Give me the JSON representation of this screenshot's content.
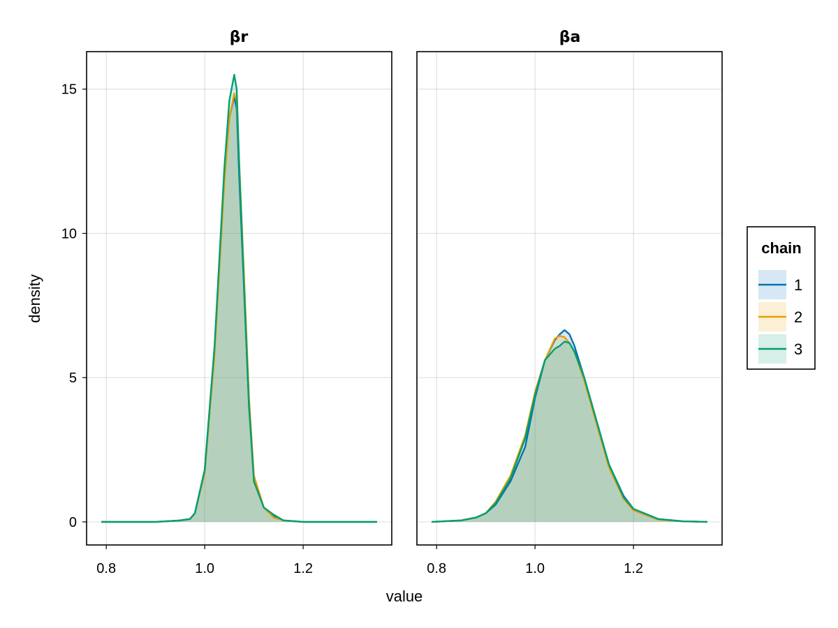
{
  "figure": {
    "xlabel": "value",
    "ylabel": "density"
  },
  "legend": {
    "title": "chain",
    "position": "right",
    "entries": [
      {
        "label": "1",
        "color": "#0072b2",
        "fill": "#0072b2"
      },
      {
        "label": "2",
        "color": "#e69f00",
        "fill": "#e69f00"
      },
      {
        "label": "3",
        "color": "#009e73",
        "fill": "#009e73"
      }
    ]
  },
  "chart_data": [
    {
      "type": "area",
      "title": "βr",
      "xlim": [
        0.76,
        1.38
      ],
      "ylim": [
        -0.8,
        16.3
      ],
      "xticks": [
        0.8,
        1.0,
        1.2
      ],
      "xtick_labels": [
        "0.8",
        "1.0",
        "1.2"
      ],
      "yticks": [
        0,
        5,
        10,
        15
      ],
      "ytick_labels": [
        "0",
        "5",
        "10",
        "15"
      ],
      "grid": true,
      "series": [
        {
          "name": "1",
          "x": [
            0.79,
            0.9,
            0.95,
            0.97,
            0.98,
            1.0,
            1.02,
            1.04,
            1.05,
            1.06,
            1.065,
            1.07,
            1.08,
            1.09,
            1.1,
            1.12,
            1.14,
            1.16,
            1.2,
            1.35
          ],
          "y": [
            0,
            0,
            0.05,
            0.1,
            0.3,
            1.8,
            6.0,
            12.0,
            14.0,
            14.75,
            14.3,
            12.0,
            8.0,
            4.0,
            1.5,
            0.5,
            0.2,
            0.05,
            0,
            0
          ]
        },
        {
          "name": "2",
          "x": [
            0.79,
            0.9,
            0.95,
            0.97,
            0.98,
            1.0,
            1.02,
            1.04,
            1.05,
            1.06,
            1.065,
            1.07,
            1.08,
            1.09,
            1.1,
            1.12,
            1.14,
            1.16,
            1.2,
            1.35
          ],
          "y": [
            0,
            0,
            0.05,
            0.1,
            0.3,
            1.7,
            5.8,
            11.8,
            14.0,
            14.85,
            14.6,
            12.5,
            8.5,
            4.3,
            1.6,
            0.5,
            0.15,
            0.05,
            0,
            0
          ]
        },
        {
          "name": "3",
          "x": [
            0.79,
            0.9,
            0.95,
            0.97,
            0.98,
            1.0,
            1.02,
            1.04,
            1.05,
            1.06,
            1.065,
            1.07,
            1.08,
            1.09,
            1.1,
            1.12,
            1.14,
            1.16,
            1.2,
            1.35
          ],
          "y": [
            0,
            0,
            0.05,
            0.1,
            0.3,
            1.8,
            6.1,
            12.3,
            14.6,
            15.5,
            15.0,
            12.4,
            8.1,
            4.0,
            1.4,
            0.5,
            0.25,
            0.05,
            0,
            0
          ]
        }
      ]
    },
    {
      "type": "area",
      "title": "βa",
      "xlim": [
        0.76,
        1.38
      ],
      "ylim": [
        -0.8,
        16.3
      ],
      "xticks": [
        0.8,
        1.0,
        1.2
      ],
      "xtick_labels": [
        "0.8",
        "1.0",
        "1.2"
      ],
      "yticks": [
        0,
        5,
        10,
        15
      ],
      "ytick_labels": [
        "",
        "",
        "",
        ""
      ],
      "grid": true,
      "series": [
        {
          "name": "1",
          "x": [
            0.79,
            0.85,
            0.88,
            0.9,
            0.92,
            0.95,
            0.98,
            1.0,
            1.02,
            1.04,
            1.05,
            1.06,
            1.07,
            1.08,
            1.1,
            1.12,
            1.15,
            1.18,
            1.2,
            1.25,
            1.3,
            1.35
          ],
          "y": [
            0,
            0.05,
            0.15,
            0.3,
            0.6,
            1.4,
            2.6,
            4.3,
            5.6,
            6.3,
            6.5,
            6.65,
            6.5,
            6.1,
            5.0,
            3.8,
            2.0,
            0.9,
            0.45,
            0.1,
            0.02,
            0
          ]
        },
        {
          "name": "2",
          "x": [
            0.79,
            0.85,
            0.88,
            0.9,
            0.92,
            0.95,
            0.98,
            1.0,
            1.02,
            1.04,
            1.05,
            1.06,
            1.07,
            1.08,
            1.1,
            1.12,
            1.15,
            1.18,
            1.2,
            1.25,
            1.3,
            1.35
          ],
          "y": [
            0,
            0.05,
            0.15,
            0.3,
            0.7,
            1.6,
            3.0,
            4.5,
            5.6,
            6.35,
            6.45,
            6.4,
            6.2,
            5.9,
            4.9,
            3.7,
            1.9,
            0.8,
            0.4,
            0.08,
            0.02,
            0
          ]
        },
        {
          "name": "3",
          "x": [
            0.79,
            0.85,
            0.88,
            0.9,
            0.92,
            0.95,
            0.98,
            1.0,
            1.02,
            1.04,
            1.05,
            1.06,
            1.07,
            1.08,
            1.1,
            1.12,
            1.15,
            1.18,
            1.2,
            1.25,
            1.3,
            1.35
          ],
          "y": [
            0,
            0.05,
            0.15,
            0.3,
            0.65,
            1.5,
            2.9,
            4.4,
            5.6,
            6.0,
            6.1,
            6.25,
            6.2,
            5.9,
            5.0,
            3.8,
            2.0,
            0.85,
            0.45,
            0.1,
            0.02,
            0
          ]
        }
      ]
    }
  ]
}
